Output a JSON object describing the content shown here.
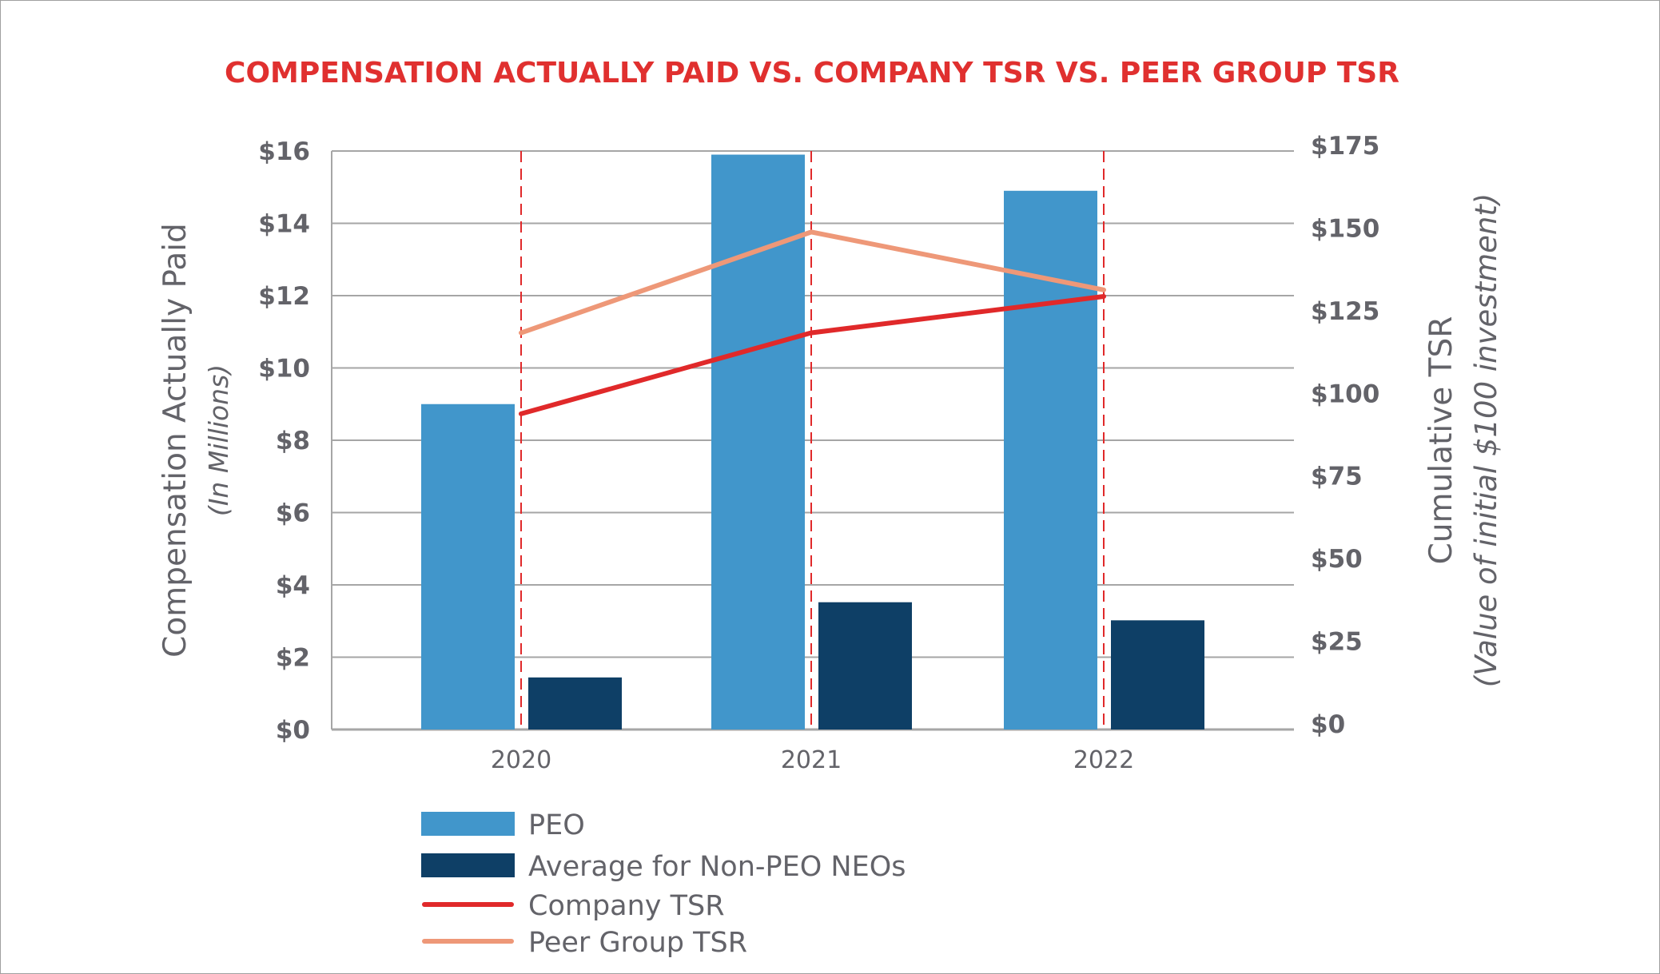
{
  "chart_data": {
    "type": "bar",
    "title": "COMPENSATION ACTUALLY PAID VS. COMPANY TSR VS. PEER GROUP TSR",
    "categories": [
      "2020",
      "2021",
      "2022"
    ],
    "ylabel": "Compensation Actually Paid",
    "ylabel_sub": "(In Millions)",
    "y2label": "Cumulative TSR",
    "y2label_sub": "(Value of initial $100 investment)",
    "ylim": [
      0,
      16
    ],
    "y2lim": [
      0,
      175
    ],
    "yticks": [
      "$0",
      "$2",
      "$4",
      "$6",
      "$8",
      "$10",
      "$12",
      "$14",
      "$16"
    ],
    "y2ticks": [
      "$0",
      "$25",
      "$50",
      "$75",
      "$100",
      "$125",
      "$150",
      "$175"
    ],
    "grid": true,
    "legend_position": "bottom-left",
    "series": [
      {
        "name": "PEO",
        "kind": "bar",
        "axis": "left",
        "color": "#4196cb",
        "values": [
          9.0,
          15.9,
          14.9
        ]
      },
      {
        "name": "Average for Non-PEO NEOs",
        "kind": "bar",
        "axis": "left",
        "color": "#0e3f66",
        "values": [
          1.44,
          3.52,
          3.02
        ]
      },
      {
        "name": "Company TSR",
        "kind": "line",
        "axis": "right",
        "color": "#e0292a",
        "values": [
          95.5,
          120,
          131
        ]
      },
      {
        "name": "Peer Group TSR",
        "kind": "line",
        "axis": "right",
        "color": "#ee9878",
        "values": [
          120,
          150.5,
          133
        ]
      }
    ],
    "colors": {
      "title": "#e0302f",
      "ticks": "#636369",
      "grid": "#a6a6a6",
      "marker_line": "#e0292a"
    }
  }
}
